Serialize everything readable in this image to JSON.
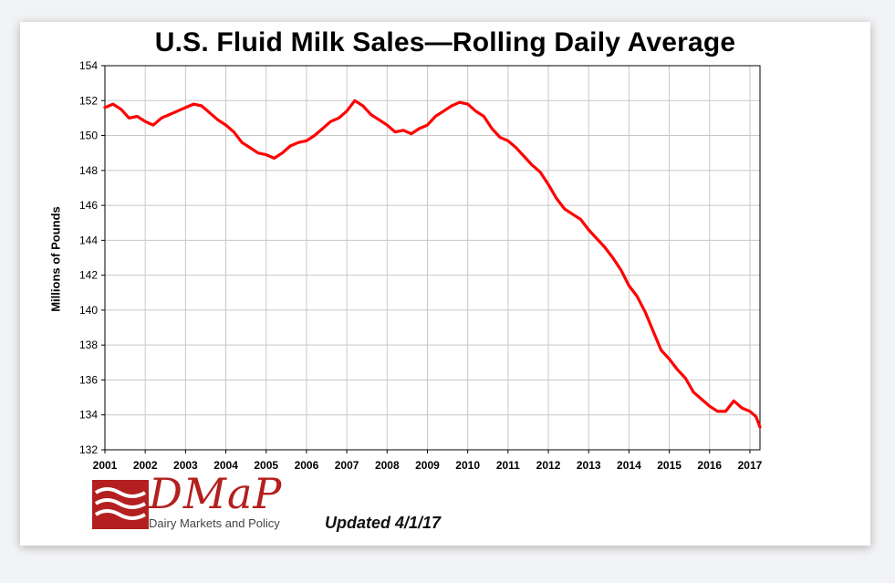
{
  "chart_data": {
    "type": "line",
    "title": "U.S. Fluid Milk Sales—Rolling Daily Average",
    "ylabel": "Millions of Pounds",
    "xlabel": "",
    "xlim": [
      2001,
      2017.25
    ],
    "ylim": [
      132,
      154
    ],
    "x_ticks": [
      2001,
      2002,
      2003,
      2004,
      2005,
      2006,
      2007,
      2008,
      2009,
      2010,
      2011,
      2012,
      2013,
      2014,
      2015,
      2016,
      2017
    ],
    "y_ticks": [
      132,
      134,
      136,
      138,
      140,
      142,
      144,
      146,
      148,
      150,
      152,
      154
    ],
    "grid": true,
    "line_color": "#ff0000",
    "series": [
      {
        "x": [
          2001.0,
          2001.2,
          2001.4,
          2001.6,
          2001.8,
          2002.0,
          2002.2,
          2002.4,
          2002.6,
          2002.8,
          2003.0,
          2003.2,
          2003.4,
          2003.6,
          2003.8,
          2004.0,
          2004.2,
          2004.4,
          2004.6,
          2004.8,
          2005.0,
          2005.2,
          2005.4,
          2005.6,
          2005.8,
          2006.0,
          2006.2,
          2006.4,
          2006.6,
          2006.8,
          2007.0,
          2007.2,
          2007.4,
          2007.6,
          2007.8,
          2008.0,
          2008.2,
          2008.4,
          2008.6,
          2008.8,
          2009.0,
          2009.2,
          2009.4,
          2009.6,
          2009.8,
          2010.0,
          2010.2,
          2010.4,
          2010.6,
          2010.8,
          2011.0,
          2011.2,
          2011.4,
          2011.6,
          2011.8,
          2012.0,
          2012.2,
          2012.4,
          2012.6,
          2012.8,
          2013.0,
          2013.2,
          2013.4,
          2013.6,
          2013.8,
          2014.0,
          2014.2,
          2014.4,
          2014.6,
          2014.8,
          2015.0,
          2015.2,
          2015.4,
          2015.6,
          2015.8,
          2016.0,
          2016.2,
          2016.4,
          2016.6,
          2016.8,
          2017.0,
          2017.15,
          2017.25
        ],
        "values": [
          151.6,
          151.8,
          151.5,
          151.0,
          151.1,
          150.8,
          150.6,
          151.0,
          151.2,
          151.4,
          151.6,
          151.8,
          151.7,
          151.3,
          150.9,
          150.6,
          150.2,
          149.6,
          149.3,
          149.0,
          148.9,
          148.7,
          149.0,
          149.4,
          149.6,
          149.7,
          150.0,
          150.4,
          150.8,
          151.0,
          151.4,
          152.0,
          151.7,
          151.2,
          150.9,
          150.6,
          150.2,
          150.3,
          150.1,
          150.4,
          150.6,
          151.1,
          151.4,
          151.7,
          151.9,
          151.8,
          151.4,
          151.1,
          150.4,
          149.9,
          149.7,
          149.3,
          148.8,
          148.3,
          147.9,
          147.2,
          146.4,
          145.8,
          145.5,
          145.2,
          144.6,
          144.1,
          143.6,
          143.0,
          142.3,
          141.4,
          140.8,
          139.9,
          138.8,
          137.7,
          137.2,
          136.6,
          136.1,
          135.3,
          134.9,
          134.5,
          134.2,
          134.2,
          134.8,
          134.4,
          134.2,
          133.9,
          133.3
        ]
      }
    ]
  },
  "logo": {
    "wordmark": "DMaP",
    "subtitle": "Dairy Markets and Policy"
  },
  "updated_text": "Updated 4/1/17"
}
